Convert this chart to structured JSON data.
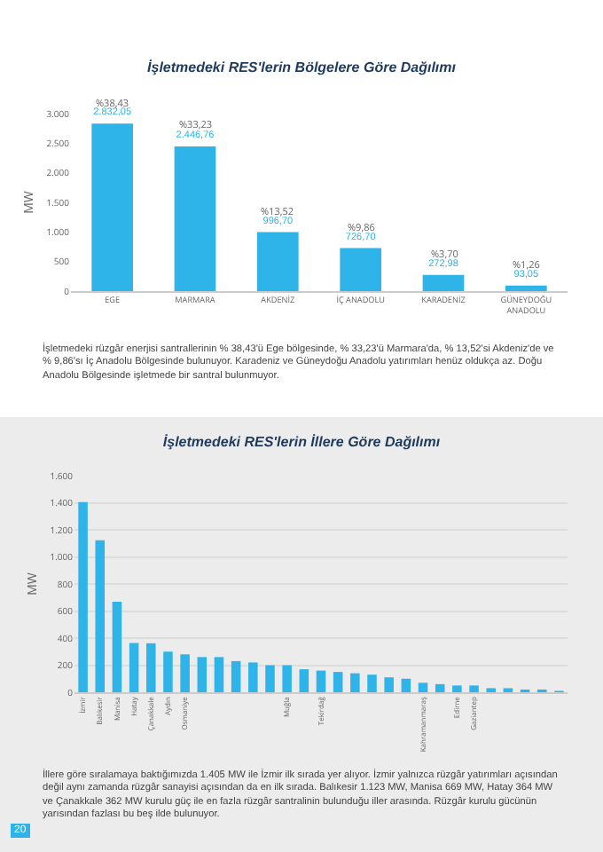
{
  "chart_data": [
    {
      "type": "bar",
      "title": "İşletmedeki RES'lerin Bölgelere Göre Dağılımı",
      "ylabel": "MW",
      "categories": [
        "EGE",
        "MARMARA",
        "AKDENİZ",
        "İÇ ANADOLU",
        "KARADENİZ",
        "GÜNEYDOĞU ANADOLU"
      ],
      "values": [
        2832.05,
        2446.76,
        996.7,
        726.7,
        272.98,
        93.05
      ],
      "value_labels": [
        "2.832,05",
        "2.446,76",
        "996,70",
        "726,70",
        "272,98",
        "93,05"
      ],
      "color": "#2eb4e8",
      "ylim": [
        0,
        3000
      ],
      "yticks": [
        0,
        500,
        {
          "value": 1000,
          "label": "1.000"
        },
        {
          "value": 1500,
          "label": "1.500"
        },
        {
          "value": 2000,
          "label": "2.000"
        },
        {
          "value": 2500,
          "label": "2.500"
        },
        {
          "value": 3000,
          "label": "3.000"
        }
      ],
      "annotations": [
        {
          "text": "%38,43",
          "x": "EGE",
          "y": 2832.05
        },
        {
          "text": "%33,23",
          "x": "MARMARA",
          "y": 2446.76
        },
        {
          "text": "%13,52",
          "x": "AKDENİZ",
          "y": 996.7
        },
        {
          "text": "%9,86",
          "x": "İÇ ANADOLU",
          "y": 726.7
        },
        {
          "text": "%3,70",
          "x": "KARADENİZ",
          "y": 272.98
        },
        {
          "text": "%1,26",
          "x": "GÜNEYDOĞU ANADOLU",
          "y": 93.05
        },
        "İşletmedeki rüzgâr enerjisi santrallerinin % 38,43'ü Ege bölgesinde, % 33,23'ü Marmara'da, % 13,52'si Akdeniz'de ve % 9,86'sı İç Anadolu Bölgesinde bulunuyor. Karadeniz ve Güneydoğu Anadolu yatırımları henüz oldukça az. Doğu Anadolu Bölgesinde işletmede bir santral bulunmuyor."
      ],
      "grid": false
    },
    {
      "type": "bar",
      "title": "İşletmedeki RES'lerin İllere Göre Dağılımı",
      "ylabel": "MW",
      "categories": [
        "İzmir",
        "Balıkesir",
        "Manisa",
        "Hatay",
        "Çanakkale",
        "Aydın",
        "Osmaniye",
        null,
        null,
        null,
        null,
        null,
        "Muğla",
        null,
        "Tekirdağ",
        null,
        null,
        null,
        null,
        null,
        "Kahramanmaraş",
        null,
        "Edirne",
        "Gaziantep",
        null,
        null,
        null,
        null,
        null
      ],
      "values": [
        1405,
        1123,
        669,
        364,
        362,
        300,
        280,
        260,
        260,
        230,
        220,
        200,
        200,
        170,
        160,
        150,
        140,
        130,
        110,
        100,
        70,
        60,
        50,
        50,
        30,
        30,
        20,
        20,
        10
      ],
      "color": "#2eb4e8",
      "ylim": [
        0,
        1600
      ],
      "yticks": [
        0,
        200,
        400,
        600,
        800,
        {
          "value": 1000,
          "label": "1.000"
        },
        {
          "value": 1200,
          "label": "1.200"
        },
        {
          "value": 1400,
          "label": "1.400"
        },
        {
          "value": 1600,
          "label": "1.600"
        }
      ],
      "annotations": [
        "İllere göre sıralamaya baktığımızda 1.405 MW ile İzmir ilk sırada yer alıyor. İzmir yalnızca rüzgâr yatırımları açısından değil aynı zamanda rüzgâr sanayisi açısından da en ilk sırada. Balıkesir 1.123 MW, Manisa 669 MW, Hatay 364 MW ve Çanakkale 362 MW kurulu güç ile en fazla rüzgâr santralinin bulunduğu iller arasında. Rüzgâr kurulu gücünün yarısından fazlası bu beş ilde bulunuyor.",
        "20"
      ],
      "grid": "y"
    }
  ]
}
